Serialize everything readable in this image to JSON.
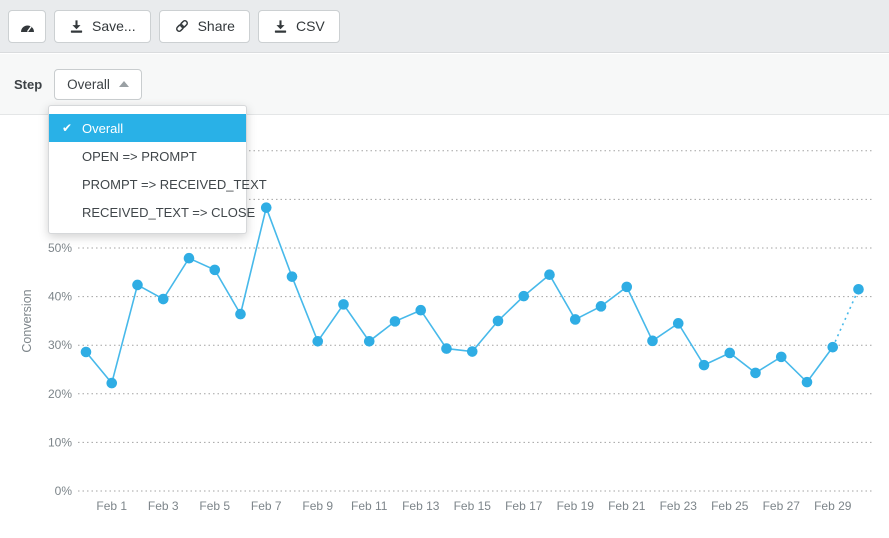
{
  "toolbar": {
    "dashboard_button": {
      "icon": "gauge-icon"
    },
    "save_label": "Save...",
    "share_label": "Share",
    "csv_label": "CSV"
  },
  "step_row": {
    "label": "Step",
    "selected_value": "Overall"
  },
  "dropdown": {
    "items": [
      {
        "label": "Overall",
        "selected": true
      },
      {
        "label": "OPEN => PROMPT",
        "selected": false
      },
      {
        "label": "PROMPT => RECEIVED_TEXT",
        "selected": false
      },
      {
        "label": "RECEIVED_TEXT => CLOSE",
        "selected": false
      }
    ]
  },
  "chart_data": {
    "type": "line",
    "title": "",
    "ylabel": "Conversion",
    "series_name": "Overall",
    "x": [
      "Jan 31",
      "Feb 1",
      "Feb 2",
      "Feb 3",
      "Feb 4",
      "Feb 5",
      "Feb 6",
      "Feb 7",
      "Feb 8",
      "Feb 9",
      "Feb 10",
      "Feb 11",
      "Feb 12",
      "Feb 13",
      "Feb 14",
      "Feb 15",
      "Feb 16",
      "Feb 17",
      "Feb 18",
      "Feb 19",
      "Feb 20",
      "Feb 21",
      "Feb 22",
      "Feb 23",
      "Feb 24",
      "Feb 25",
      "Feb 26",
      "Feb 27",
      "Feb 28",
      "Feb 29",
      "Mar 1"
    ],
    "values": [
      28.6,
      22.2,
      42.4,
      39.5,
      47.9,
      45.5,
      36.4,
      58.3,
      44.1,
      30.8,
      38.4,
      30.8,
      34.9,
      37.2,
      29.3,
      28.7,
      35.0,
      40.1,
      44.5,
      35.3,
      38.0,
      42.0,
      30.9,
      34.5,
      25.9,
      28.4,
      24.3,
      27.6,
      22.4,
      29.6,
      41.5
    ],
    "x_tick_labels": [
      "Feb 1",
      "Feb 3",
      "Feb 5",
      "Feb 7",
      "Feb 9",
      "Feb 11",
      "Feb 13",
      "Feb 15",
      "Feb 17",
      "Feb 19",
      "Feb 21",
      "Feb 23",
      "Feb 25",
      "Feb 27",
      "Feb 29"
    ],
    "y_ticks": [
      "0%",
      "10%",
      "20%",
      "30%",
      "40%",
      "50%",
      "60%",
      "70%"
    ],
    "ylim": [
      0,
      75
    ],
    "grid": "dotted-horizontal",
    "legend": "none",
    "last_segment_style": "dotted-incomplete-period",
    "colors": {
      "line": "#47b9ea",
      "point": "#2fade4",
      "grid": "#a3a3a3",
      "tick_text": "#7d858a",
      "selected_bg": "#29b1e7"
    }
  }
}
